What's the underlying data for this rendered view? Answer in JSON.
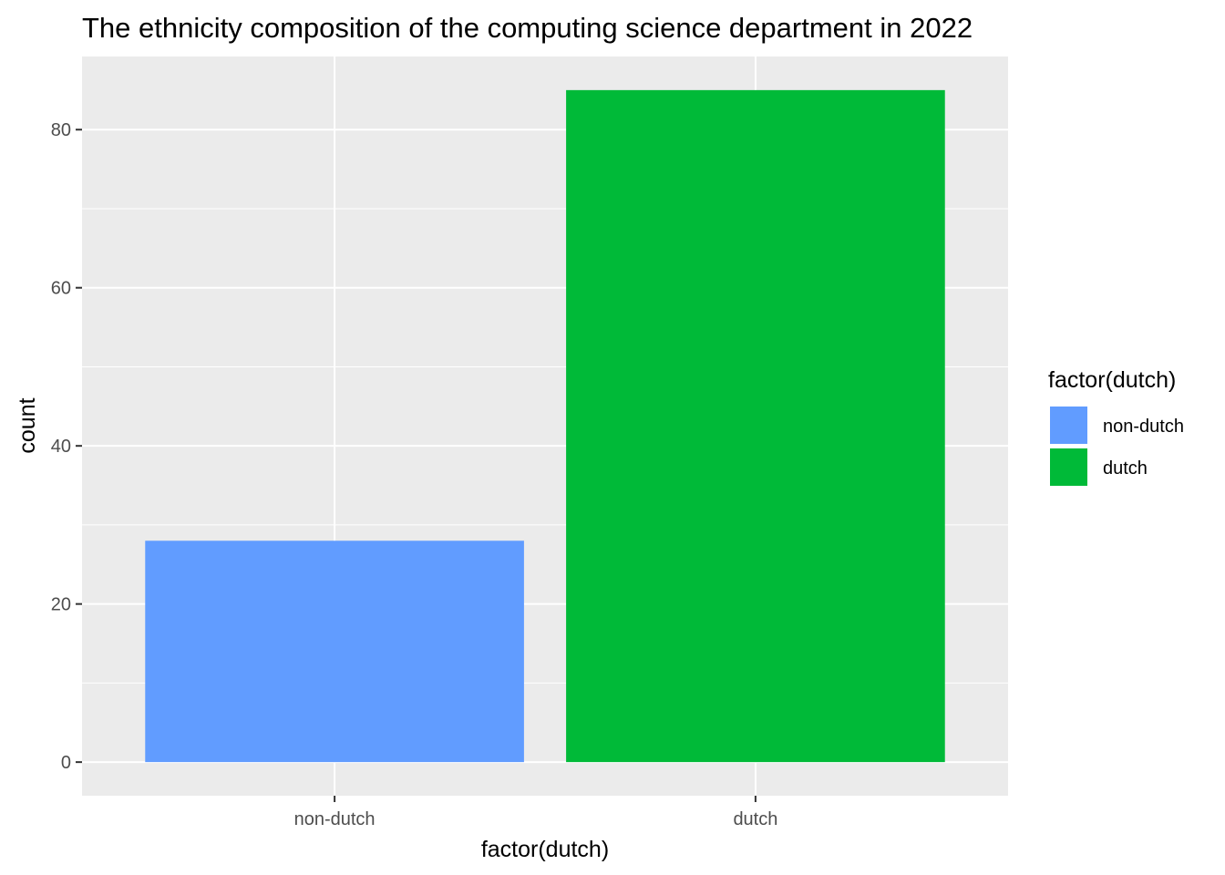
{
  "chart_data": {
    "type": "bar",
    "title": "The ethnicity composition of the computing science department in 2022",
    "xlabel": "factor(dutch)",
    "ylabel": "count",
    "categories": [
      "non-dutch",
      "dutch"
    ],
    "values": [
      28,
      85
    ],
    "colors": [
      "#619CFF",
      "#00BA38"
    ],
    "ylim": [
      -4.25,
      89.25
    ],
    "yticks": [
      0,
      20,
      40,
      60,
      80
    ],
    "ytick_labels": [
      "0",
      "20",
      "40",
      "60",
      "80"
    ],
    "grid": true,
    "panel_background": "#EBEBEB",
    "legend": {
      "title": "factor(dutch)",
      "position": "right",
      "entries": [
        {
          "label": "non-dutch",
          "color": "#619CFF"
        },
        {
          "label": "dutch",
          "color": "#00BA38"
        }
      ]
    }
  }
}
